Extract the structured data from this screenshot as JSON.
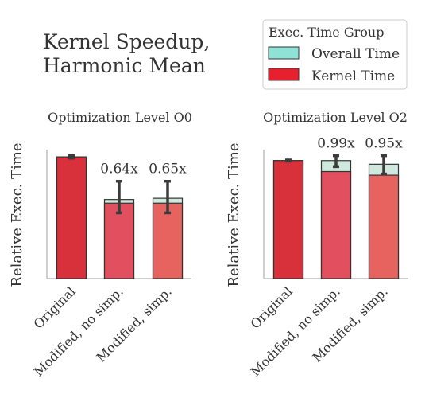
{
  "title_lines": [
    "Kernel Speedup,",
    "Harmonic Mean"
  ],
  "legend": {
    "title": "Exec. Time Group",
    "entries": [
      {
        "label": "Overall Time",
        "color": "#8fe3d6"
      },
      {
        "label": "Kernel Time",
        "color": "#e8202e"
      }
    ]
  },
  "colors": {
    "bars": [
      "#d9313c",
      "#e2505f",
      "#e6635f"
    ],
    "overall_overlay": "#cfe9df",
    "error_bar": "#3b3b3b",
    "axis": "#bdbdbd"
  },
  "chart_data": [
    {
      "type": "bar",
      "title": "Optimization Level O0",
      "ylabel": "Relative Exec. Time",
      "categories": [
        "Original",
        "Modified, no simp.",
        "Modified, simp."
      ],
      "ylim": [
        0,
        1.06
      ],
      "series": [
        {
          "name": "Overall Time",
          "values": [
            1.0,
            0.65,
            0.66
          ]
        },
        {
          "name": "Kernel Time",
          "values": [
            1.0,
            0.62,
            0.62
          ]
        }
      ],
      "error_ranges": [
        [
          0.99,
          1.01
        ],
        [
          0.54,
          0.8
        ],
        [
          0.54,
          0.8
        ]
      ],
      "annotations": [
        "",
        "0.64x",
        "0.65x"
      ]
    },
    {
      "type": "bar",
      "title": "Optimization Level O2",
      "ylabel": "Relative Exec. Time",
      "categories": [
        "Original",
        "Modified, no simp.",
        "Modified, simp."
      ],
      "ylim": [
        0,
        1.06
      ],
      "series": [
        {
          "name": "Overall Time",
          "values": [
            0.97,
            0.97,
            0.94
          ]
        },
        {
          "name": "Kernel Time",
          "values": [
            0.97,
            0.88,
            0.85
          ]
        }
      ],
      "error_ranges": [
        [
          0.965,
          0.975
        ],
        [
          0.92,
          1.01
        ],
        [
          0.86,
          1.01
        ]
      ],
      "annotations": [
        "",
        "0.99x",
        "0.95x"
      ]
    }
  ]
}
